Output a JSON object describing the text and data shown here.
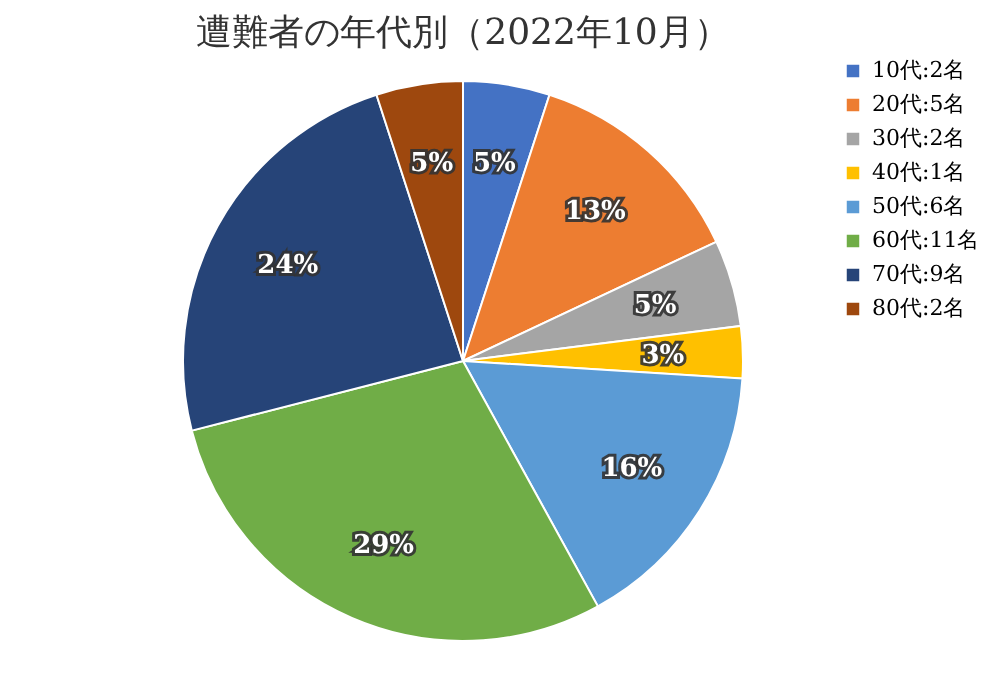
{
  "chart_data": {
    "type": "pie",
    "title": "遭難者の年代別（2022年10月）",
    "categories": [
      "10代:2名",
      "20代:5名",
      "30代:2名",
      "40代:1名",
      "50代:6名",
      "60代:11名",
      "70代:9名",
      "80代:2名"
    ],
    "values": [
      5,
      13,
      5,
      3,
      16,
      29,
      24,
      5
    ],
    "value_labels": [
      "5%",
      "13%",
      "5%",
      "3%",
      "16%",
      "29%",
      "24%",
      "5%"
    ],
    "colors": [
      "#4472c4",
      "#ed7d31",
      "#a5a5a5",
      "#ffc000",
      "#5b9bd5",
      "#70ad47",
      "#264478",
      "#9e480e"
    ],
    "legend": "right"
  }
}
